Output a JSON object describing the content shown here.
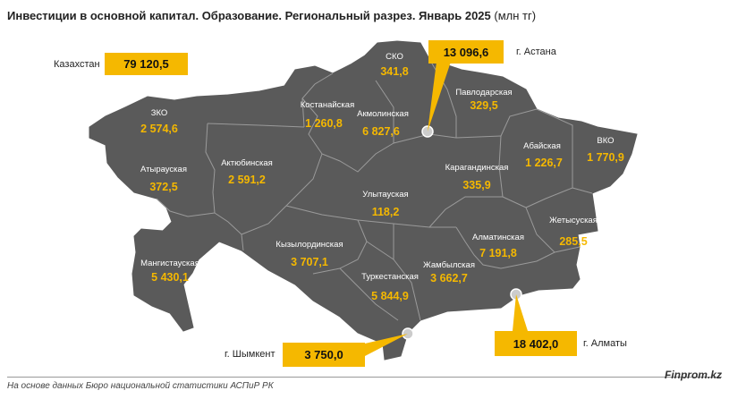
{
  "title": "Инвестиции в основной капитал. Образование. Региональный разрез. Январь 2025",
  "unit": "(млн тг)",
  "total": {
    "label": "Казахстан",
    "value": "79 120,5"
  },
  "regions": [
    {
      "name": "СКО",
      "value": "341,8"
    },
    {
      "name": "Павлодарская",
      "value": "329,5"
    },
    {
      "name": "Костанайская",
      "value": "1 260,8"
    },
    {
      "name": "Акмолинская",
      "value": "6 827,6"
    },
    {
      "name": "ЗКО",
      "value": "2 574,6"
    },
    {
      "name": "Абайская",
      "value": "1 226,7"
    },
    {
      "name": "ВКО",
      "value": "1 770,9"
    },
    {
      "name": "Актюбинская",
      "value": "2 591,2"
    },
    {
      "name": "Атырауская",
      "value": "372,5"
    },
    {
      "name": "Карагандинская",
      "value": "335,9"
    },
    {
      "name": "Улытауская",
      "value": "118,2"
    },
    {
      "name": "Жетысуская",
      "value": "285,5"
    },
    {
      "name": "Алматинская",
      "value": "7 191,8"
    },
    {
      "name": "Кызылординская",
      "value": "3 707,1"
    },
    {
      "name": "Мангистауская",
      "value": "5 430,1"
    },
    {
      "name": "Жамбылская",
      "value": "3 662,7"
    },
    {
      "name": "Туркестанская",
      "value": "5 844,9"
    }
  ],
  "cities": [
    {
      "name": "г. Астана",
      "value": "13 096,6"
    },
    {
      "name": "г. Алматы",
      "value": "18 402,0"
    },
    {
      "name": "г. Шымкент",
      "value": "3 750,0"
    }
  ],
  "source": "На основе данных Бюро национальной статистики АСПиР РК",
  "brand": "Finprom.kz",
  "colors": {
    "map": "#5a5a5a",
    "border": "#9a9a9a",
    "accent": "#f5b800"
  }
}
